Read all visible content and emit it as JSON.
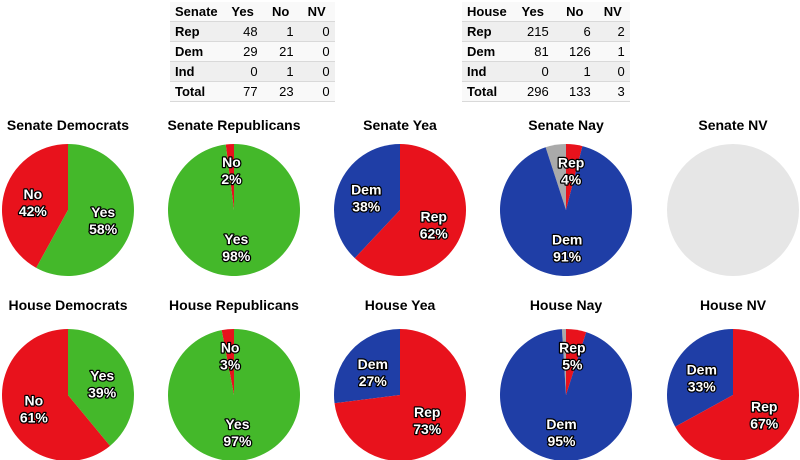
{
  "tables": [
    {
      "header": [
        "Senate",
        "Yes",
        "No",
        "NV"
      ],
      "rows": [
        [
          "Rep",
          "48",
          "1",
          "0"
        ],
        [
          "Dem",
          "29",
          "21",
          "0"
        ],
        [
          "Ind",
          "0",
          "1",
          "0"
        ],
        [
          "Total",
          "77",
          "23",
          "0"
        ]
      ]
    },
    {
      "header": [
        "House",
        "Yes",
        "No",
        "NV"
      ],
      "rows": [
        [
          "Rep",
          "215",
          "6",
          "2"
        ],
        [
          "Dem",
          "81",
          "126",
          "1"
        ],
        [
          "Ind",
          "0",
          "1",
          "0"
        ],
        [
          "Total",
          "296",
          "133",
          "3"
        ]
      ]
    }
  ],
  "colors": {
    "yes": "#44b82a",
    "no": "#e8121c",
    "rep": "#e8121c",
    "dem": "#1f3ea6",
    "other": "#aaaaaa",
    "empty": "#e6e6e6"
  },
  "chart_data": [
    {
      "type": "pie",
      "title": "Senate Democrats",
      "slices": [
        {
          "label": "No",
          "value": 42,
          "text": "42%",
          "color": "#e8121c"
        },
        {
          "label": "Yes",
          "value": 58,
          "text": "58%",
          "color": "#44b82a"
        }
      ]
    },
    {
      "type": "pie",
      "title": "Senate Republicans",
      "slices": [
        {
          "label": "No",
          "value": 2,
          "text": "2%",
          "color": "#e8121c"
        },
        {
          "label": "Yes",
          "value": 98,
          "text": "98%",
          "color": "#44b82a"
        }
      ]
    },
    {
      "type": "pie",
      "title": "Senate Yea",
      "slices": [
        {
          "label": "Dem",
          "value": 38,
          "text": "38%",
          "color": "#1f3ea6"
        },
        {
          "label": "Rep",
          "value": 62,
          "text": "62%",
          "color": "#e8121c"
        }
      ]
    },
    {
      "type": "pie",
      "title": "Senate Nay",
      "slices": [
        {
          "label": "",
          "value": 5,
          "text": "",
          "color": "#aaaaaa"
        },
        {
          "label": "Rep",
          "value": 4,
          "text": "4%",
          "color": "#e8121c"
        },
        {
          "label": "Dem",
          "value": 91,
          "text": "91%",
          "color": "#1f3ea6"
        }
      ]
    },
    {
      "type": "pie",
      "title": "Senate NV",
      "slices": []
    },
    {
      "type": "pie",
      "title": "House Democrats",
      "slices": [
        {
          "label": "No",
          "value": 61,
          "text": "61%",
          "color": "#e8121c"
        },
        {
          "label": "Yes",
          "value": 39,
          "text": "39%",
          "color": "#44b82a"
        }
      ]
    },
    {
      "type": "pie",
      "title": "House Republicans",
      "slices": [
        {
          "label": "No",
          "value": 3,
          "text": "3%",
          "color": "#e8121c"
        },
        {
          "label": "Yes",
          "value": 97,
          "text": "97%",
          "color": "#44b82a"
        }
      ]
    },
    {
      "type": "pie",
      "title": "House Yea",
      "slices": [
        {
          "label": "Dem",
          "value": 27,
          "text": "27%",
          "color": "#1f3ea6"
        },
        {
          "label": "Rep",
          "value": 73,
          "text": "73%",
          "color": "#e8121c"
        }
      ]
    },
    {
      "type": "pie",
      "title": "House Nay",
      "slices": [
        {
          "label": "",
          "value": 1,
          "text": "",
          "color": "#aaaaaa"
        },
        {
          "label": "Rep",
          "value": 5,
          "text": "5%",
          "color": "#e8121c"
        },
        {
          "label": "Dem",
          "value": 95,
          "text": "95%",
          "color": "#1f3ea6"
        }
      ]
    },
    {
      "type": "pie",
      "title": "House NV",
      "slices": [
        {
          "label": "Dem",
          "value": 33,
          "text": "33%",
          "color": "#1f3ea6"
        },
        {
          "label": "Rep",
          "value": 67,
          "text": "67%",
          "color": "#e8121c"
        }
      ]
    }
  ]
}
